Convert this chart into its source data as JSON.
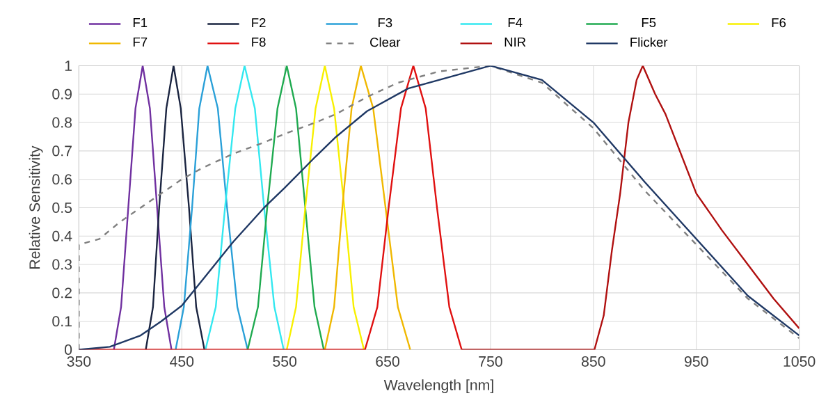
{
  "chart_data": {
    "type": "line",
    "xlabel": "Wavelength [nm]",
    "ylabel": "Relative Sensitivity",
    "xlim": [
      350,
      1050
    ],
    "ylim": [
      0,
      1
    ],
    "xticks": [
      350,
      450,
      550,
      650,
      750,
      850,
      950,
      1050
    ],
    "yticks": [
      0,
      0.1,
      0.2,
      0.3,
      0.4,
      0.5,
      0.6,
      0.7,
      0.8,
      0.9,
      1
    ],
    "grid": true,
    "legend": "top",
    "series": [
      {
        "name": "F1",
        "color": "#7030a0",
        "x": [
          384,
          391,
          398,
          405,
          412,
          419,
          426,
          433,
          440
        ],
        "values": [
          0,
          0.15,
          0.5,
          0.85,
          1,
          0.85,
          0.5,
          0.15,
          0
        ]
      },
      {
        "name": "F2",
        "color": "#1a2440",
        "x": [
          415,
          422,
          428,
          435,
          442,
          449,
          457,
          464,
          472
        ],
        "values": [
          0,
          0.15,
          0.5,
          0.85,
          1,
          0.85,
          0.5,
          0.15,
          0
        ]
      },
      {
        "name": "F3",
        "color": "#2aa0d8",
        "x": [
          444,
          452,
          460,
          467,
          475,
          485,
          494,
          504,
          514
        ],
        "values": [
          0,
          0.15,
          0.5,
          0.85,
          1,
          0.85,
          0.5,
          0.15,
          0
        ]
      },
      {
        "name": "F4",
        "color": "#33e8f0",
        "x": [
          473,
          483,
          492,
          502,
          511,
          521,
          530,
          540,
          549
        ],
        "values": [
          0,
          0.15,
          0.5,
          0.85,
          1,
          0.85,
          0.5,
          0.15,
          0
        ]
      },
      {
        "name": "F5",
        "color": "#1faa50",
        "x": [
          514,
          524,
          533,
          543,
          552,
          561,
          570,
          579,
          588
        ],
        "values": [
          0,
          0.15,
          0.5,
          0.85,
          1,
          0.85,
          0.5,
          0.15,
          0
        ]
      },
      {
        "name": "F6",
        "color": "#f8f000",
        "x": [
          552,
          561,
          570,
          580,
          589,
          598,
          608,
          617,
          627
        ],
        "values": [
          0,
          0.15,
          0.5,
          0.85,
          1,
          0.85,
          0.5,
          0.15,
          0
        ]
      },
      {
        "name": "F7",
        "color": "#f0b800",
        "x": [
          589,
          598,
          606,
          615,
          624,
          636,
          648,
          660,
          672
        ],
        "values": [
          0,
          0.15,
          0.5,
          0.85,
          1,
          0.85,
          0.5,
          0.15,
          0
        ]
      },
      {
        "name": "F8",
        "color": "#e01010",
        "x": [
          350,
          628,
          640,
          651,
          663,
          675,
          687,
          698,
          710,
          722
        ],
        "values": [
          0,
          0,
          0.15,
          0.5,
          0.85,
          1,
          0.85,
          0.5,
          0.15,
          0
        ]
      },
      {
        "name": "Clear",
        "color": "#808080",
        "line_style": "dashed",
        "x": [
          350,
          350,
          370,
          390,
          410,
          430,
          450,
          470,
          500,
          530,
          550,
          580,
          600,
          630,
          660,
          700,
          750,
          800,
          850,
          900,
          950,
          1000,
          1050
        ],
        "values": [
          0,
          0.37,
          0.39,
          0.45,
          0.5,
          0.55,
          0.6,
          0.64,
          0.69,
          0.73,
          0.76,
          0.8,
          0.83,
          0.89,
          0.94,
          0.98,
          1,
          0.94,
          0.78,
          0.56,
          0.37,
          0.18,
          0.04
        ]
      },
      {
        "name": "NIR",
        "color": "#b01010",
        "x": [
          722,
          851,
          860,
          868,
          876,
          884,
          892,
          898,
          910,
          920,
          935,
          950,
          975,
          1000,
          1025,
          1050
        ],
        "values": [
          0,
          0,
          0.12,
          0.35,
          0.55,
          0.8,
          0.95,
          1,
          0.9,
          0.83,
          0.69,
          0.55,
          0.42,
          0.3,
          0.18,
          0.075
        ]
      },
      {
        "name": "Flicker",
        "color": "#1f3864",
        "x": [
          350,
          380,
          410,
          430,
          450,
          470,
          500,
          530,
          550,
          580,
          600,
          630,
          670,
          700,
          750,
          800,
          850,
          900,
          950,
          1000,
          1050
        ],
        "values": [
          0,
          0.01,
          0.05,
          0.1,
          0.155,
          0.245,
          0.38,
          0.5,
          0.57,
          0.68,
          0.75,
          0.84,
          0.92,
          0.95,
          1,
          0.95,
          0.8,
          0.59,
          0.39,
          0.19,
          0.05
        ]
      }
    ]
  }
}
